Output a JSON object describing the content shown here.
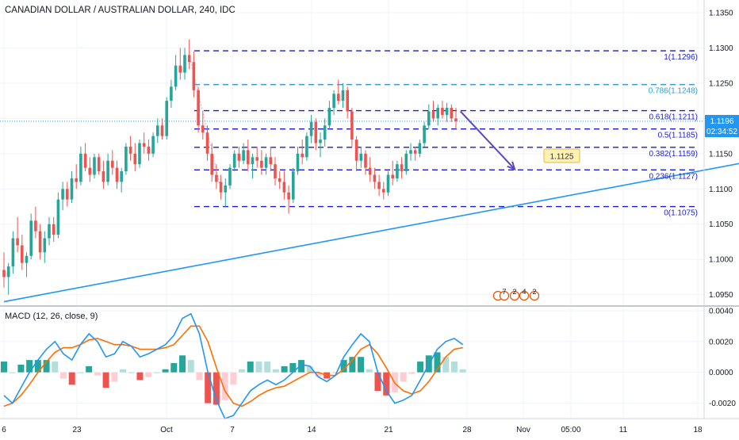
{
  "chart_data": [
    {
      "type": "candlestick",
      "title": "CANADIAN DOLLAR / AUSTRALIAN DOLLAR, 240, IDC",
      "price_axis": {
        "ticks": [
          "1.1350",
          "1.1300",
          "1.1250",
          "1.1200",
          "1.1150",
          "1.1100",
          "1.1050",
          "1.1000",
          "1.0950"
        ],
        "range": [
          1.0935,
          1.1368
        ]
      },
      "x_axis_ticks": [
        "6",
        "23",
        "Oct",
        "7",
        "14",
        "21",
        "28",
        "Nov",
        "05:00",
        "11",
        "18"
      ],
      "last_price": {
        "value": "1.1196",
        "countdown": "02:34:52",
        "color": "#2196f3"
      },
      "candle_colors": {
        "up": "#26a69a",
        "down": "#ef5350"
      },
      "candles": [
        [
          1.0985,
          1.101,
          1.096,
          1.0975
        ],
        [
          1.0975,
          1.0995,
          1.095,
          1.099
        ],
        [
          1.099,
          1.104,
          1.098,
          1.103
        ],
        [
          1.103,
          1.106,
          1.101,
          1.102
        ],
        [
          1.102,
          1.1035,
          1.0985,
          1.0995
        ],
        [
          1.0995,
          1.101,
          1.0975,
          1.1005
        ],
        [
          1.1005,
          1.1065,
          1.1,
          1.1055
        ],
        [
          1.1055,
          1.1075,
          1.103,
          1.104
        ],
        [
          1.104,
          1.105,
          1.1,
          1.101
        ],
        [
          1.101,
          1.104,
          1.0995,
          1.103
        ],
        [
          1.103,
          1.106,
          1.102,
          1.105
        ],
        [
          1.105,
          1.106,
          1.1025,
          1.1035
        ],
        [
          1.1035,
          1.1095,
          1.103,
          1.1085
        ],
        [
          1.1085,
          1.111,
          1.107,
          1.11
        ],
        [
          1.11,
          1.111,
          1.1075,
          1.1085
        ],
        [
          1.1085,
          1.1125,
          1.108,
          1.1115
        ],
        [
          1.1115,
          1.1135,
          1.11,
          1.111
        ],
        [
          1.111,
          1.116,
          1.1105,
          1.115
        ],
        [
          1.115,
          1.1165,
          1.1125,
          1.113
        ],
        [
          1.113,
          1.1145,
          1.111,
          1.112
        ],
        [
          1.112,
          1.115,
          1.1115,
          1.1145
        ],
        [
          1.1145,
          1.115,
          1.112,
          1.1125
        ],
        [
          1.1125,
          1.114,
          1.11,
          1.111
        ],
        [
          1.111,
          1.115,
          1.1105,
          1.114
        ],
        [
          1.114,
          1.1155,
          1.112,
          1.113
        ],
        [
          1.113,
          1.114,
          1.11,
          1.111
        ],
        [
          1.111,
          1.113,
          1.1095,
          1.1125
        ],
        [
          1.1125,
          1.1165,
          1.112,
          1.116
        ],
        [
          1.116,
          1.1175,
          1.114,
          1.115
        ],
        [
          1.115,
          1.1165,
          1.1125,
          1.1135
        ],
        [
          1.1135,
          1.117,
          1.113,
          1.1165
        ],
        [
          1.1165,
          1.118,
          1.115,
          1.116
        ],
        [
          1.116,
          1.117,
          1.114,
          1.115
        ],
        [
          1.115,
          1.118,
          1.1145,
          1.1175
        ],
        [
          1.1175,
          1.12,
          1.1165,
          1.119
        ],
        [
          1.119,
          1.12,
          1.117,
          1.1175
        ],
        [
          1.1175,
          1.123,
          1.117,
          1.1225
        ],
        [
          1.1225,
          1.1255,
          1.1215,
          1.1245
        ],
        [
          1.1245,
          1.129,
          1.124,
          1.1275
        ],
        [
          1.1275,
          1.13,
          1.1255,
          1.1265
        ],
        [
          1.1265,
          1.13,
          1.1255,
          1.129
        ],
        [
          1.129,
          1.1312,
          1.127,
          1.128
        ],
        [
          1.128,
          1.1295,
          1.123,
          1.124
        ],
        [
          1.124,
          1.1245,
          1.118,
          1.119
        ],
        [
          1.119,
          1.121,
          1.117,
          1.118
        ],
        [
          1.118,
          1.119,
          1.114,
          1.115
        ],
        [
          1.115,
          1.1165,
          1.111,
          1.112
        ],
        [
          1.112,
          1.1135,
          1.11,
          1.111
        ],
        [
          1.111,
          1.112,
          1.1085,
          1.1095
        ],
        [
          1.1095,
          1.1115,
          1.1075,
          1.1105
        ],
        [
          1.1105,
          1.1135,
          1.11,
          1.113
        ],
        [
          1.113,
          1.1155,
          1.1125,
          1.115
        ],
        [
          1.115,
          1.116,
          1.113,
          1.114
        ],
        [
          1.114,
          1.1165,
          1.1135,
          1.1155
        ],
        [
          1.1155,
          1.117,
          1.1125,
          1.1135
        ],
        [
          1.1135,
          1.115,
          1.1115,
          1.1145
        ],
        [
          1.1145,
          1.116,
          1.113,
          1.114
        ],
        [
          1.114,
          1.1155,
          1.112,
          1.113
        ],
        [
          1.113,
          1.115,
          1.112,
          1.1145
        ],
        [
          1.1145,
          1.116,
          1.1125,
          1.1135
        ],
        [
          1.1135,
          1.1145,
          1.1105,
          1.1115
        ],
        [
          1.1115,
          1.1125,
          1.11,
          1.111
        ],
        [
          1.111,
          1.1125,
          1.1085,
          1.1095
        ],
        [
          1.1095,
          1.1105,
          1.1065,
          1.1085
        ],
        [
          1.1085,
          1.113,
          1.108,
          1.1125
        ],
        [
          1.1125,
          1.116,
          1.112,
          1.115
        ],
        [
          1.115,
          1.117,
          1.1135,
          1.1145
        ],
        [
          1.1145,
          1.118,
          1.114,
          1.1175
        ],
        [
          1.1175,
          1.1205,
          1.1165,
          1.1195
        ],
        [
          1.1195,
          1.12,
          1.1155,
          1.1165
        ],
        [
          1.1165,
          1.118,
          1.1145,
          1.117
        ],
        [
          1.117,
          1.12,
          1.116,
          1.119
        ],
        [
          1.119,
          1.1225,
          1.1185,
          1.1215
        ],
        [
          1.1215,
          1.124,
          1.1205,
          1.1235
        ],
        [
          1.1235,
          1.1255,
          1.122,
          1.1225
        ],
        [
          1.1225,
          1.125,
          1.1215,
          1.124
        ],
        [
          1.124,
          1.1245,
          1.12,
          1.121
        ],
        [
          1.121,
          1.1215,
          1.116,
          1.117
        ],
        [
          1.117,
          1.1175,
          1.1125,
          1.114
        ],
        [
          1.114,
          1.116,
          1.113,
          1.115
        ],
        [
          1.115,
          1.1155,
          1.112,
          1.113
        ],
        [
          1.113,
          1.1145,
          1.111,
          1.112
        ],
        [
          1.112,
          1.113,
          1.11,
          1.111
        ],
        [
          1.111,
          1.112,
          1.109,
          1.11
        ],
        [
          1.11,
          1.111,
          1.1085,
          1.1095
        ],
        [
          1.1095,
          1.1125,
          1.109,
          1.112
        ],
        [
          1.112,
          1.114,
          1.1105,
          1.1115
        ],
        [
          1.1115,
          1.114,
          1.111,
          1.1135
        ],
        [
          1.1135,
          1.1145,
          1.1115,
          1.1125
        ],
        [
          1.1125,
          1.1155,
          1.112,
          1.115
        ],
        [
          1.115,
          1.1165,
          1.114,
          1.1155
        ],
        [
          1.1155,
          1.116,
          1.114,
          1.115
        ],
        [
          1.115,
          1.117,
          1.1145,
          1.1165
        ],
        [
          1.1165,
          1.1195,
          1.116,
          1.119
        ],
        [
          1.119,
          1.122,
          1.1185,
          1.121
        ],
        [
          1.121,
          1.1225,
          1.1195,
          1.12
        ],
        [
          1.12,
          1.122,
          1.119,
          1.1215
        ],
        [
          1.1215,
          1.1225,
          1.12,
          1.1205
        ],
        [
          1.1205,
          1.1222,
          1.1195,
          1.1215
        ],
        [
          1.1215,
          1.122,
          1.1195,
          1.12
        ],
        [
          1.12,
          1.1215,
          1.1185,
          1.1196
        ]
      ],
      "fibonacci": {
        "levels": [
          {
            "label": "1(1.1296)",
            "value": 1.1296,
            "color": "#1a1adb"
          },
          {
            "label": "0.786(1.1248)",
            "value": 1.1248,
            "color": "#2a9fd6"
          },
          {
            "label": "0.618(1.1211)",
            "value": 1.1211,
            "color": "#1a1adb"
          },
          {
            "label": "0.5(1.1185)",
            "value": 1.1185,
            "color": "#1a1adb"
          },
          {
            "label": "0.382(1.1159)",
            "value": 1.1159,
            "color": "#1a1adb"
          },
          {
            "label": "0.236(1.1127)",
            "value": 1.1127,
            "color": "#1a1adb"
          },
          {
            "label": "0(1.1075)",
            "value": 1.1075,
            "color": "#1a1adb"
          }
        ]
      },
      "trendline": {
        "color": "#2196f3",
        "from": [
          0,
          1.094
        ],
        "to": [
          171,
          1.1146
        ]
      },
      "projection_arrow": {
        "color": "#5b46c8",
        "from": [
          101,
          1.121
        ],
        "to": [
          113,
          1.1128
        ]
      },
      "target_label": {
        "text": "1.1125",
        "bg": "#fff2b3",
        "border": "#e0b84a"
      },
      "event_badges": [
        "7",
        "2",
        "4",
        "2"
      ]
    },
    {
      "type": "macd",
      "title": "MACD (12, 26, close, 9)",
      "y_axis": {
        "ticks": [
          "0.0040",
          "0.0020",
          "0.0000",
          "-0.0020"
        ],
        "range": [
          -0.003,
          0.0042
        ]
      },
      "colors": {
        "macd": "#2196f3",
        "signal": "#ff6d00",
        "hist_up_strong": "#26a69a",
        "hist_up_weak": "#b2dfdb",
        "hist_down_strong": "#ef5350",
        "hist_down_weak": "#ffcdd2"
      },
      "macd": [
        -0.0015,
        -0.002,
        -0.001,
        0.0,
        0.0008,
        0.0015,
        0.002,
        0.0012,
        0.0008,
        0.0018,
        0.0025,
        0.002,
        0.001,
        0.0012,
        0.002,
        0.0017,
        0.001,
        0.0012,
        0.0015,
        0.0018,
        0.0024,
        0.0035,
        0.0038,
        0.0025,
        0.0,
        -0.0018,
        -0.003,
        -0.0028,
        -0.002,
        -0.0012,
        -0.0008,
        -0.0005,
        -0.0008,
        -0.0005,
        0.0,
        0.0005,
        0.0004,
        -0.0003,
        -0.0006,
        -0.0002,
        0.001,
        0.0018,
        0.0025,
        0.002,
        0.0,
        -0.0012,
        -0.002,
        -0.0018,
        -0.0015,
        -0.0005,
        0.0005,
        0.0015,
        0.002,
        0.0022,
        0.0018
      ],
      "signal": [
        -0.0022,
        -0.002,
        -0.0015,
        -0.0008,
        0.0,
        0.0007,
        0.0013,
        0.0016,
        0.0016,
        0.0018,
        0.0021,
        0.0022,
        0.002,
        0.0018,
        0.0018,
        0.0017,
        0.0015,
        0.0015,
        0.0015,
        0.0016,
        0.0018,
        0.0024,
        0.003,
        0.003,
        0.002,
        0.0003,
        -0.0012,
        -0.002,
        -0.0022,
        -0.0019,
        -0.0015,
        -0.0012,
        -0.001,
        -0.0009,
        -0.0006,
        -0.0003,
        0.0,
        0.0,
        -0.0002,
        -0.0002,
        0.0002,
        0.0008,
        0.0015,
        0.0018,
        0.0012,
        0.0003,
        -0.0007,
        -0.0012,
        -0.0014,
        -0.0012,
        -0.0006,
        0.0002,
        0.001,
        0.0015,
        0.0016
      ]
    }
  ]
}
